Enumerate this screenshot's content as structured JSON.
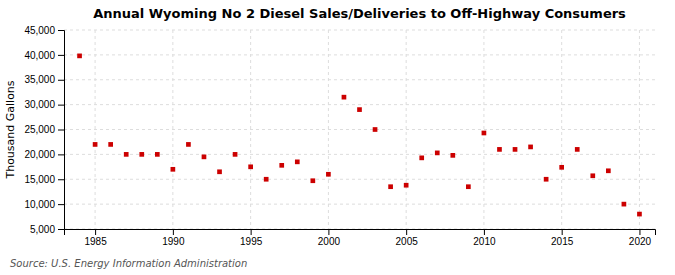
{
  "chart_data": {
    "type": "scatter",
    "title": "Annual Wyoming No 2 Diesel Sales/Deliveries to Off-Highway Consumers",
    "y_label": "Thousand Gallons",
    "annotations": [
      "Source: U.S. Energy Information Administration"
    ],
    "x": [
      1984,
      1985,
      1986,
      1987,
      1988,
      1989,
      1990,
      1991,
      1992,
      1993,
      1994,
      1995,
      1996,
      1997,
      1998,
      1999,
      2000,
      2001,
      2002,
      2003,
      2004,
      2005,
      2006,
      2007,
      2008,
      2009,
      2010,
      2011,
      2012,
      2013,
      2014,
      2015,
      2016,
      2017,
      2018,
      2019,
      2020
    ],
    "values": [
      39800,
      22000,
      22000,
      20000,
      20000,
      20000,
      17000,
      22000,
      19500,
      16500,
      20000,
      17500,
      15000,
      17800,
      18500,
      14700,
      16000,
      31500,
      29000,
      25000,
      13500,
      13800,
      19300,
      20300,
      19800,
      13500,
      24300,
      21000,
      21000,
      21500,
      15000,
      17400,
      21000,
      15700,
      16700,
      10000,
      8000
    ],
    "color": "#cc0000",
    "marker": "square",
    "xlim": [
      1983,
      2021
    ],
    "xticks": [
      1985,
      1990,
      1995,
      2000,
      2005,
      2010,
      2015,
      2020
    ],
    "ylim": [
      5000,
      45000
    ],
    "yticks": [
      {
        "value": 5000,
        "label": "5,000"
      },
      {
        "value": 10000,
        "label": "10,000"
      },
      {
        "value": 15000,
        "label": "15,000"
      },
      {
        "value": 20000,
        "label": "20,000"
      },
      {
        "value": 25000,
        "label": "25,000"
      },
      {
        "value": 30000,
        "label": "30,000"
      },
      {
        "value": 35000,
        "label": "35,000"
      },
      {
        "value": 40000,
        "label": "40,000"
      },
      {
        "value": 45000,
        "label": "45,000"
      }
    ],
    "grid": true
  }
}
